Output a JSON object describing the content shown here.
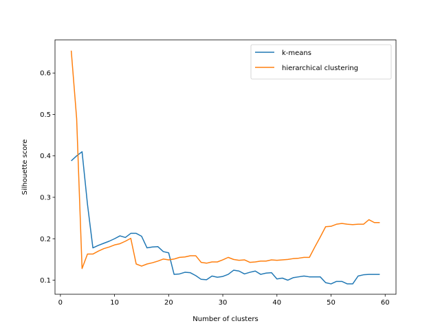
{
  "chart_data": {
    "type": "line",
    "title": "",
    "xlabel": "Number of clusters",
    "ylabel": "Silhouette score",
    "xlim": [
      -1,
      62
    ],
    "ylim": [
      0.066,
      0.68
    ],
    "xticks": [
      0,
      10,
      20,
      30,
      40,
      50,
      60
    ],
    "yticks": [
      0.1,
      0.2,
      0.3,
      0.4,
      0.5,
      0.6
    ],
    "grid": false,
    "legend": "top-right",
    "series": [
      {
        "name": "k-means",
        "color": "#1f77b4",
        "x": [
          2,
          3,
          4,
          5,
          6,
          7,
          8,
          9,
          10,
          11,
          12,
          13,
          14,
          15,
          16,
          17,
          18,
          19,
          20,
          21,
          22,
          23,
          24,
          25,
          26,
          27,
          28,
          29,
          30,
          31,
          32,
          33,
          34,
          35,
          36,
          37,
          38,
          39,
          40,
          41,
          42,
          43,
          44,
          45,
          46,
          47,
          48,
          49,
          50,
          51,
          52,
          53,
          54,
          55,
          56,
          57,
          58,
          59
        ],
        "y": [
          0.388,
          0.4,
          0.41,
          0.283,
          0.178,
          0.184,
          0.189,
          0.194,
          0.2,
          0.207,
          0.203,
          0.213,
          0.213,
          0.206,
          0.178,
          0.18,
          0.181,
          0.169,
          0.166,
          0.114,
          0.115,
          0.119,
          0.118,
          0.111,
          0.102,
          0.101,
          0.11,
          0.107,
          0.109,
          0.114,
          0.124,
          0.122,
          0.115,
          0.119,
          0.122,
          0.114,
          0.117,
          0.118,
          0.103,
          0.105,
          0.1,
          0.106,
          0.108,
          0.11,
          0.108,
          0.108,
          0.108,
          0.094,
          0.091,
          0.097,
          0.097,
          0.091,
          0.091,
          0.11,
          0.113,
          0.114,
          0.114,
          0.114
        ]
      },
      {
        "name": "hierarchical clustering",
        "color": "#ff7f0e",
        "x": [
          2,
          3,
          4,
          5,
          6,
          7,
          8,
          9,
          10,
          11,
          12,
          13,
          14,
          15,
          16,
          17,
          18,
          19,
          20,
          21,
          22,
          23,
          24,
          25,
          26,
          27,
          28,
          29,
          30,
          31,
          32,
          33,
          34,
          35,
          36,
          37,
          38,
          39,
          40,
          41,
          42,
          43,
          44,
          45,
          46,
          47,
          48,
          49,
          50,
          51,
          52,
          53,
          54,
          55,
          56,
          57,
          58,
          59
        ],
        "y": [
          0.654,
          0.49,
          0.128,
          0.163,
          0.163,
          0.17,
          0.176,
          0.18,
          0.185,
          0.188,
          0.194,
          0.201,
          0.139,
          0.134,
          0.139,
          0.142,
          0.146,
          0.151,
          0.149,
          0.151,
          0.155,
          0.156,
          0.159,
          0.159,
          0.143,
          0.141,
          0.144,
          0.144,
          0.149,
          0.155,
          0.15,
          0.148,
          0.149,
          0.143,
          0.144,
          0.146,
          0.146,
          0.149,
          0.148,
          0.149,
          0.15,
          0.152,
          0.153,
          0.155,
          0.155,
          0.18,
          0.204,
          0.229,
          0.23,
          0.235,
          0.237,
          0.235,
          0.234,
          0.235,
          0.235,
          0.246,
          0.239,
          0.239
        ]
      }
    ]
  }
}
